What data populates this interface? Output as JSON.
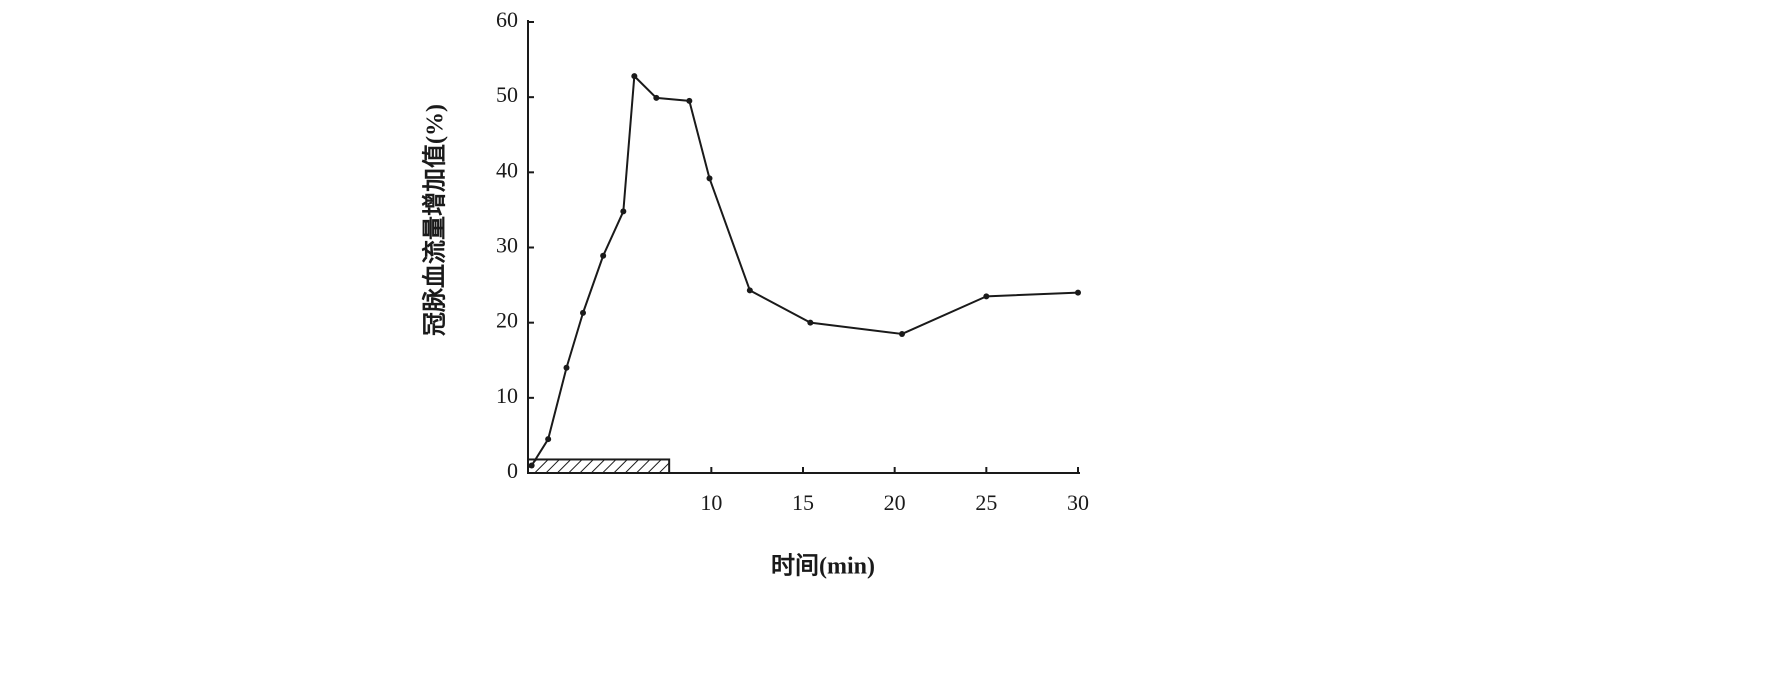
{
  "chart_data": {
    "type": "line",
    "x_label": "时间(min)",
    "y_label": "冠脉血流量增加值(%)",
    "x": [
      0.2,
      1.1,
      2.1,
      3.0,
      4.1,
      5.2,
      5.8,
      7.0,
      8.8,
      9.9,
      12.1,
      15.4,
      20.4,
      25,
      30
    ],
    "values": [
      1,
      4.5,
      14,
      21.3,
      28.9,
      34.8,
      52.8,
      49.9,
      49.5,
      39.2,
      24.3,
      20,
      18.5,
      23.5,
      24
    ],
    "color": "#1a1a1a",
    "xlim": [
      0,
      30
    ],
    "xticks": [
      10,
      15,
      20,
      25,
      30
    ],
    "ylim": [
      0,
      60
    ],
    "yticks": [
      0,
      10,
      20,
      30,
      40,
      50,
      60
    ],
    "hatched_bar": {
      "x": [
        0,
        7.7
      ],
      "height": 1.8
    }
  }
}
